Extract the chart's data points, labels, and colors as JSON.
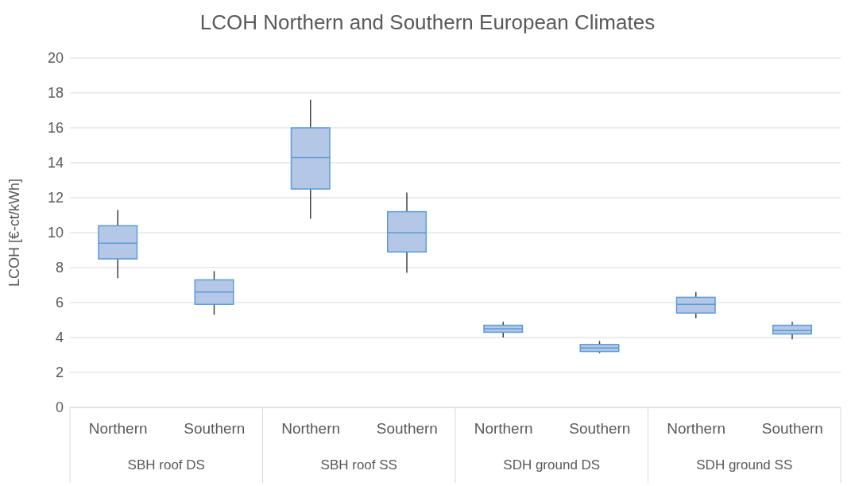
{
  "chart_data": {
    "type": "box",
    "title": "LCOH Northern and Southern European Climates",
    "ylabel": "LCOH [€-ct/kWh]",
    "categories": [
      "Northern",
      "Southern",
      "Northern",
      "Southern",
      "Northern",
      "Southern",
      "Northern",
      "Southern"
    ],
    "annotations": [
      "SBH roof DS",
      "SBH roof SS",
      "SDH ground DS",
      "SDH ground SS"
    ],
    "color": "#b4c7e7",
    "boxes": [
      {
        "low": 7.4,
        "q1": 8.5,
        "median": 9.4,
        "q3": 10.4,
        "high": 11.3
      },
      {
        "low": 5.3,
        "q1": 5.9,
        "median": 6.6,
        "q3": 7.3,
        "high": 7.8
      },
      {
        "low": 10.8,
        "q1": 12.5,
        "median": 14.3,
        "q3": 16.0,
        "high": 17.6
      },
      {
        "low": 7.7,
        "q1": 8.9,
        "median": 10.0,
        "q3": 11.2,
        "high": 12.3
      },
      {
        "low": 4.0,
        "q1": 4.3,
        "median": 4.5,
        "q3": 4.7,
        "high": 4.9
      },
      {
        "low": 3.1,
        "q1": 3.2,
        "median": 3.4,
        "q3": 3.6,
        "high": 3.8
      },
      {
        "low": 5.1,
        "q1": 5.4,
        "median": 5.9,
        "q3": 6.3,
        "high": 6.6
      },
      {
        "low": 3.9,
        "q1": 4.2,
        "median": 4.4,
        "q3": 4.7,
        "high": 4.9
      }
    ],
    "ylim": [
      0,
      20
    ],
    "yticks": [
      0,
      2,
      4,
      6,
      8,
      10,
      12,
      14,
      16,
      18,
      20
    ],
    "grid": "y"
  }
}
